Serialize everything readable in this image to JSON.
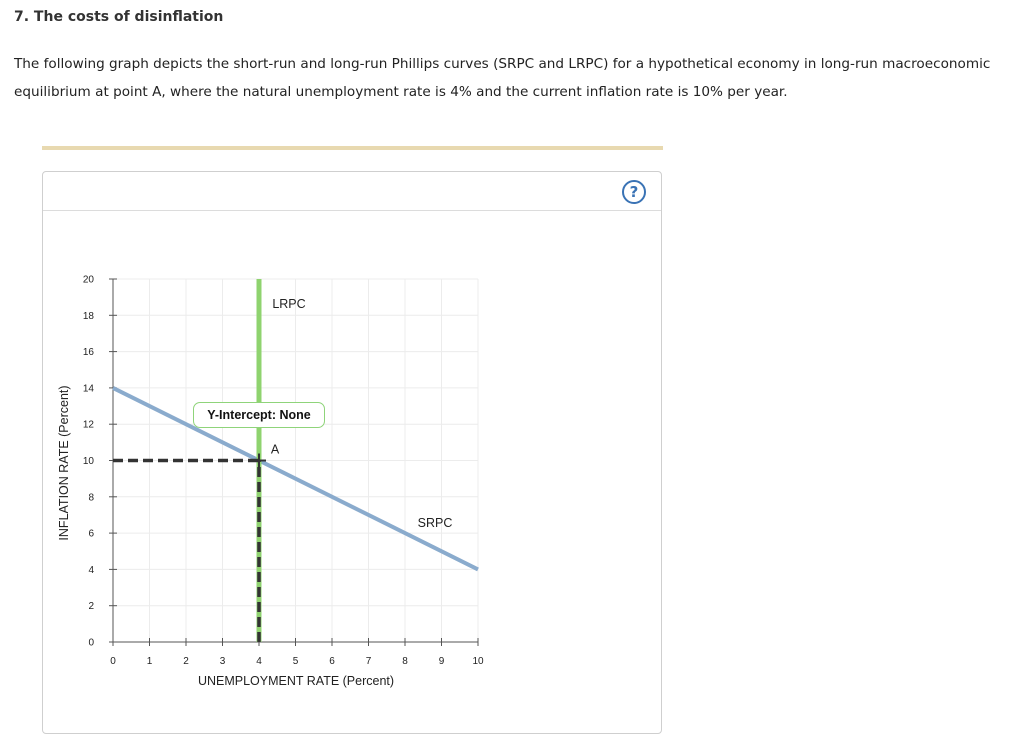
{
  "question": {
    "title": "7. The costs of disinflation",
    "body": "The following graph depicts the short-run and long-run Phillips curves (SRPC and LRPC) for a hypothetical economy in long-run macroeconomic equilibrium at point A, where the natural unemployment rate is 4% and the current inflation rate is 10% per year."
  },
  "help_button": {
    "label": "?"
  },
  "tooltip": {
    "text": "Y-Intercept: None"
  },
  "chart_data": {
    "type": "line",
    "xlabel": "UNEMPLOYMENT RATE (Percent)",
    "ylabel": "INFLATION RATE (Percent)",
    "xlim": [
      0,
      10
    ],
    "ylim": [
      0,
      20
    ],
    "x_ticks": [
      0,
      1,
      2,
      3,
      4,
      5,
      6,
      7,
      8,
      9,
      10
    ],
    "y_ticks": [
      0,
      2,
      4,
      6,
      8,
      10,
      12,
      14,
      16,
      18,
      20
    ],
    "grid": true,
    "series": [
      {
        "name": "SRPC",
        "color": "#8aabcd",
        "points": [
          [
            0,
            14
          ],
          [
            10,
            4
          ]
        ]
      },
      {
        "name": "LRPC",
        "color": "#8fd36f",
        "points": [
          [
            4,
            0
          ],
          [
            4,
            20
          ]
        ]
      }
    ],
    "annotations": [
      {
        "label": "A",
        "x": 4,
        "y": 10
      }
    ],
    "guide_lines": [
      {
        "from": [
          0,
          10
        ],
        "to": [
          4,
          10
        ],
        "style": "dashed",
        "color": "#333333"
      },
      {
        "from": [
          4,
          0
        ],
        "to": [
          4,
          10
        ],
        "style": "dashed",
        "color": "#333333"
      }
    ]
  }
}
